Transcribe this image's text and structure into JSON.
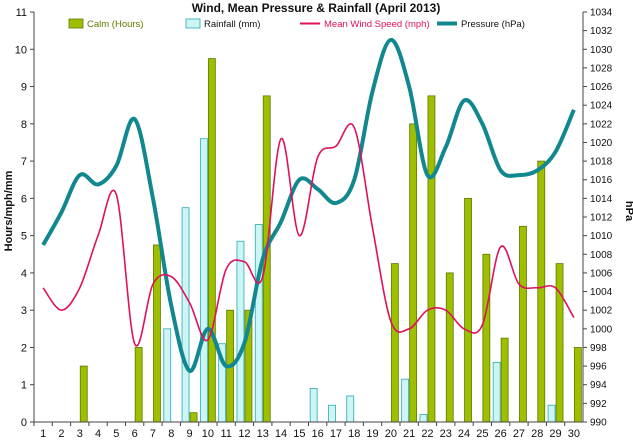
{
  "chart_data": {
    "type": "bar",
    "title": "Wind, Mean Pressure & Rainfall (April 2013)",
    "ylabel": "Hours/mph/mm",
    "y2label": "hPa",
    "ylim": [
      0,
      11
    ],
    "y2lim": [
      990,
      1034
    ],
    "yticks": [
      "0",
      "1",
      "2",
      "3",
      "4",
      "5",
      "6",
      "7",
      "8",
      "9",
      "10",
      "11"
    ],
    "y2ticks": [
      "990",
      "992",
      "994",
      "996",
      "998",
      "1000",
      "1002",
      "1004",
      "1006",
      "1008",
      "1010",
      "1012",
      "1014",
      "1016",
      "1018",
      "1020",
      "1022",
      "1024",
      "1026",
      "1028",
      "1030",
      "1032",
      "1034"
    ],
    "categories": [
      "1",
      "2",
      "3",
      "4",
      "5",
      "6",
      "7",
      "8",
      "9",
      "10",
      "11",
      "12",
      "13",
      "14",
      "15",
      "16",
      "17",
      "18",
      "19",
      "20",
      "21",
      "22",
      "23",
      "24",
      "25",
      "26",
      "27",
      "28",
      "29",
      "30"
    ],
    "grid": false,
    "legend_position": "top",
    "series": [
      {
        "name": "Calm (Hours)",
        "kind": "bar",
        "axis": "left",
        "color": "#9dbf00",
        "values": [
          0,
          0,
          1.5,
          0,
          0,
          2.0,
          4.75,
          0,
          0.25,
          9.75,
          3.0,
          3.0,
          8.75,
          0,
          0,
          0,
          0,
          0,
          0,
          4.25,
          8.0,
          8.75,
          4.0,
          6.0,
          4.5,
          2.25,
          5.25,
          7.0,
          4.25,
          2.0
        ]
      },
      {
        "name": "Rainfall (mm)",
        "kind": "bar",
        "axis": "left",
        "color": "#cdf5f5",
        "values": [
          0,
          0,
          0,
          0,
          0,
          0,
          0,
          2.5,
          5.75,
          7.6,
          2.1,
          4.85,
          5.3,
          0,
          0,
          0.9,
          0.45,
          0.7,
          0,
          0,
          1.15,
          0.2,
          0,
          0,
          0,
          1.6,
          0,
          0,
          0.45,
          0
        ]
      },
      {
        "name": "Mean Wind Speed (mph)",
        "kind": "line",
        "axis": "left",
        "color": "#e0105a",
        "values": [
          3.6,
          3.0,
          3.6,
          5.0,
          6.1,
          2.1,
          3.7,
          3.9,
          3.2,
          2.2,
          4.1,
          4.3,
          3.9,
          7.6,
          5.0,
          7.1,
          7.4,
          7.9,
          5.2,
          2.7,
          2.5,
          3.0,
          3.0,
          2.5,
          2.6,
          4.7,
          3.7,
          3.6,
          3.6,
          2.8
        ]
      },
      {
        "name": "Pressure (hPa)",
        "kind": "line",
        "axis": "right",
        "color": "#11888f",
        "values": [
          1009.0,
          1012.5,
          1016.5,
          1015.5,
          1017.5,
          1022.5,
          1014.0,
          1002.5,
          995.5,
          1000.0,
          996.0,
          998.5,
          1007.5,
          1011.5,
          1016.0,
          1015.0,
          1013.5,
          1016.0,
          1025.5,
          1031.0,
          1026.0,
          1016.5,
          1019.5,
          1024.5,
          1022.0,
          1017.0,
          1016.5,
          1017.0,
          1019.0,
          1023.5
        ]
      }
    ]
  }
}
